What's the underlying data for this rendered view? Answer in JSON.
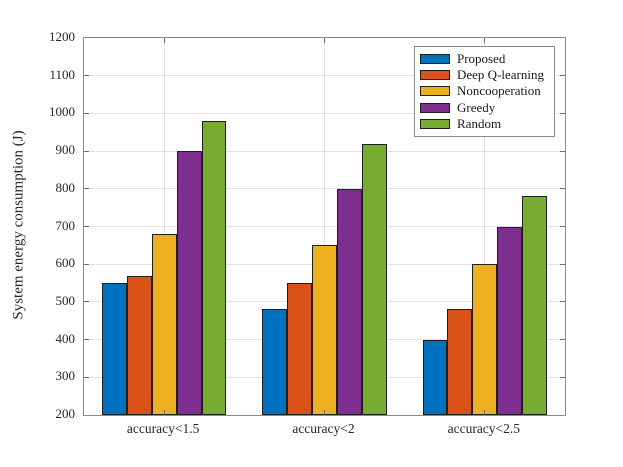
{
  "figure": {
    "background": "#ffffff"
  },
  "chart_data": {
    "type": "bar",
    "title": "",
    "xlabel": "",
    "ylabel": "System energy consumption (J)",
    "categories": [
      "accuracy<1.5",
      "accuracy<2",
      "accuracy<2.5"
    ],
    "series": [
      {
        "name": "Proposed",
        "color": "#0072BD",
        "values": [
          550,
          480,
          400
        ]
      },
      {
        "name": "Deep Q-learning",
        "color": "#D95319",
        "values": [
          570,
          550,
          480
        ]
      },
      {
        "name": "Noncooperation",
        "color": "#EDB120",
        "values": [
          680,
          650,
          600
        ]
      },
      {
        "name": "Greedy",
        "color": "#7E2F8E",
        "values": [
          900,
          800,
          700
        ]
      },
      {
        "name": "Random",
        "color": "#77AC30",
        "values": [
          980,
          920,
          780
        ]
      }
    ],
    "ylim": [
      200,
      1200
    ],
    "yticks": [
      200,
      300,
      400,
      500,
      600,
      700,
      800,
      900,
      1000,
      1100,
      1200
    ],
    "grid": true,
    "legend_position": "top-right",
    "bar_edge_color": "#1f1f1f",
    "axis_color": "#8a8a8a",
    "grid_color": "#e2e2e2",
    "tick_color": "#6b6b6b"
  }
}
